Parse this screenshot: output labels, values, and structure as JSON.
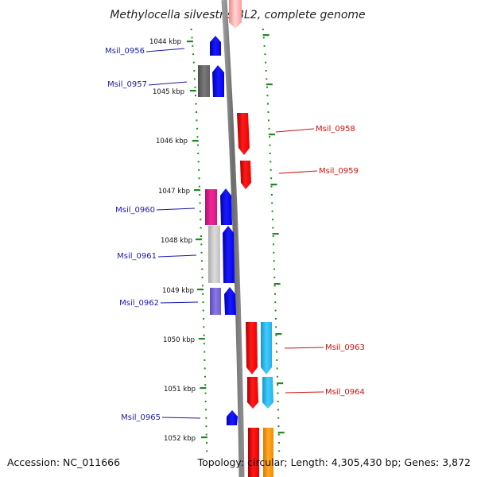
{
  "title": "Methylocella silvestris BL2, complete genome",
  "footer": {
    "accession": "Accession: NC_011666",
    "summary": "Topology: circular; Length: 4,305,430 bp; Genes: 3,872"
  },
  "kbp_labels": [
    "1044 kbp",
    "1045 kbp",
    "1046 kbp",
    "1047 kbp",
    "1048 kbp",
    "1049 kbp",
    "1050 kbp",
    "1051 kbp",
    "1052 kbp"
  ],
  "genes_forward_labels": [
    "Msil_0958",
    "Msil_0959",
    "Msil_0963",
    "Msil_0964"
  ],
  "genes_reverse_labels": [
    "Msil_0956",
    "Msil_0957",
    "Msil_0960",
    "Msil_0961",
    "Msil_0962",
    "Msil_0965"
  ],
  "colors": {
    "reverse_strand": "#0000ff",
    "forward_strand": "#ff0000",
    "label_reverse": "#1a1aaa",
    "label_forward": "#cc1111",
    "ticks": "#228822",
    "backbone": "#888888",
    "cog_magenta": "#e0198c",
    "cog_grey": "#c8c8c8",
    "cog_dark_grey": "#6e6e6e",
    "cog_purple": "#7b68d8",
    "cog_cyan": "#22bbee",
    "cog_orange": "#ff9900"
  }
}
